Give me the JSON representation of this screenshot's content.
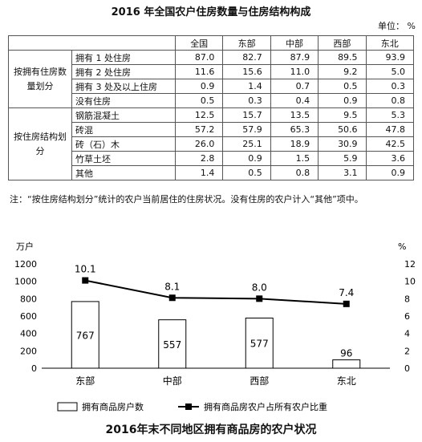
{
  "table": {
    "title": "2016 年全国农户住房数量与住房结构构成",
    "unit": "单位： %",
    "columns": [
      "全国",
      "东部",
      "中部",
      "西部",
      "东北"
    ],
    "groups": [
      {
        "label": "按拥有住房数量划分",
        "rows": [
          {
            "label": "拥有 1 处住房",
            "values": [
              "87.0",
              "82.7",
              "87.9",
              "89.5",
              "93.9"
            ]
          },
          {
            "label": "拥有 2 处住房",
            "values": [
              "11.6",
              "15.6",
              "11.0",
              "9.2",
              "5.0"
            ]
          },
          {
            "label": "拥有 3 处及以上住房",
            "values": [
              "0.9",
              "1.4",
              "0.7",
              "0.5",
              "0.3"
            ]
          },
          {
            "label": "没有住房",
            "values": [
              "0.5",
              "0.3",
              "0.4",
              "0.9",
              "0.8"
            ]
          }
        ]
      },
      {
        "label": "按住房结构划分",
        "rows": [
          {
            "label": "钢筋混凝土",
            "values": [
              "12.5",
              "15.7",
              "13.5",
              "9.5",
              "5.3"
            ]
          },
          {
            "label": "砖混",
            "values": [
              "57.2",
              "57.9",
              "65.3",
              "50.6",
              "47.8"
            ]
          },
          {
            "label": "砖（石）木",
            "values": [
              "26.0",
              "25.1",
              "18.9",
              "30.9",
              "42.5"
            ]
          },
          {
            "label": "竹草土坯",
            "values": [
              "2.8",
              "0.9",
              "1.5",
              "5.9",
              "3.6"
            ]
          },
          {
            "label": "其他",
            "values": [
              "1.4",
              "0.5",
              "0.8",
              "3.1",
              "0.9"
            ]
          }
        ]
      }
    ],
    "note": "注：“按住房结构划分”统计的农户当前居住的住房状况。没有住房的农户计入“其他”项中。"
  },
  "chart": {
    "title": "2016年末不同地区拥有商品房的农户状况",
    "left_unit": "万户",
    "right_unit": "%",
    "legend_bar": "拥有商品房户数",
    "legend_line": "拥有商品房农户占所有农户比重",
    "line_color": "#000000",
    "bar_fill": "#ffffff"
  },
  "chart_data": {
    "type": "bar",
    "categories": [
      "东部",
      "中部",
      "西部",
      "东北"
    ],
    "series": [
      {
        "name": "拥有商品房户数",
        "type": "bar",
        "axis": "left",
        "values": [
          767,
          557,
          577,
          96
        ]
      },
      {
        "name": "拥有商品房农户占所有农户比重",
        "type": "line",
        "axis": "right",
        "values": [
          10.1,
          8.1,
          8.0,
          7.4
        ]
      }
    ],
    "ylim_left": [
      0,
      1200
    ],
    "yticks_left": [
      0,
      200,
      400,
      600,
      800,
      1000,
      1200
    ],
    "ylim_right": [
      0,
      12
    ],
    "yticks_right": [
      0,
      2,
      4,
      6,
      8,
      10,
      12
    ],
    "ylabel_left": "万户",
    "ylabel_right": "%",
    "title": "2016年末不同地区拥有商品房的农户状况",
    "grid": false,
    "legend": "bottom"
  }
}
